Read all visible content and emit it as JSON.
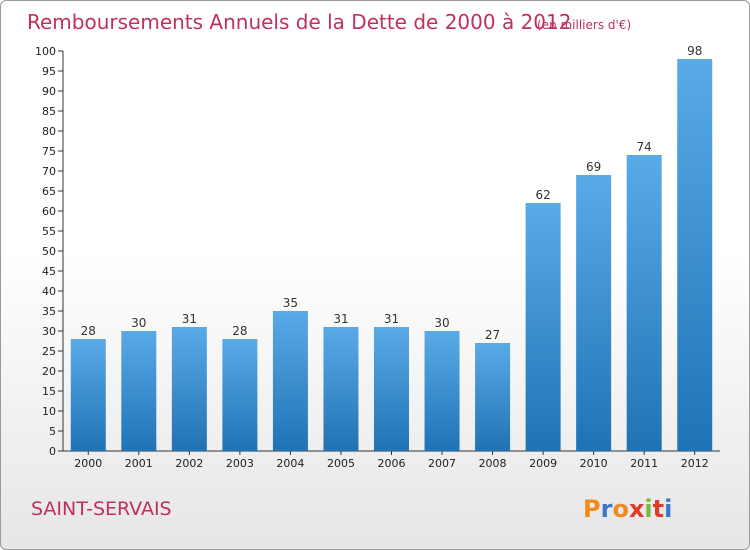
{
  "chart_data": {
    "type": "bar",
    "title": "Remboursements Annuels de la Dette de 2000 à 2012",
    "subtitle": "(en milliers d'€)",
    "categories": [
      "2000",
      "2001",
      "2002",
      "2003",
      "2004",
      "2005",
      "2006",
      "2007",
      "2008",
      "2009",
      "2010",
      "2011",
      "2012"
    ],
    "values": [
      28,
      30,
      31,
      28,
      35,
      31,
      31,
      30,
      27,
      62,
      69,
      74,
      98
    ],
    "xlabel": "",
    "ylabel": "",
    "ylim": [
      0,
      100
    ],
    "ytick_step": 5,
    "grid": false,
    "bar_color_top": "#5aaae8",
    "bar_color_bottom": "#1f73b5"
  },
  "footer": {
    "city": "SAINT-SERVAIS",
    "brand": "Proxiti",
    "brand_colors": [
      "#f08a1c",
      "#3a78c9",
      "#f08a1c",
      "#e03a2a",
      "#7ab83a",
      "#e03a2a",
      "#3a78c9"
    ]
  }
}
